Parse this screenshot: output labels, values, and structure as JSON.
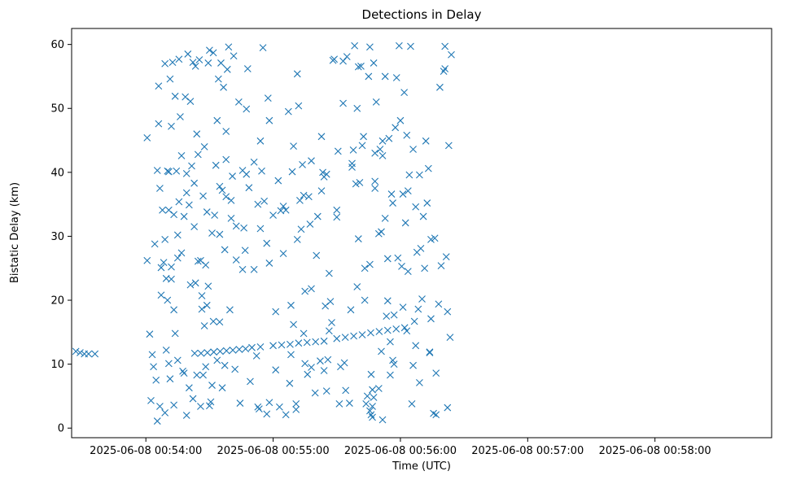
{
  "chart_data": {
    "type": "scatter",
    "title": "Detections in Delay",
    "xlabel": "Time (UTC)",
    "ylabel": "Bistatic Delay (km)",
    "marker": "x",
    "color": "#1f77b4",
    "grid": false,
    "xlim": [
      "2025-06-08 00:53:25",
      "2025-06-08 00:58:55"
    ],
    "ylim": [
      -1.5,
      62.5
    ],
    "x_ticks": [
      "2025-06-08 00:54:00",
      "2025-06-08 00:55:00",
      "2025-06-08 00:56:00",
      "2025-06-08 00:57:00",
      "2025-06-08 00:58:00"
    ],
    "y_ticks": [
      "0",
      "10",
      "20",
      "30",
      "40",
      "50",
      "60"
    ],
    "track": [
      {
        "x": "2025-06-08 00:54:23",
        "y": 11.7
      },
      {
        "x": "2025-06-08 00:54:26",
        "y": 11.7
      },
      {
        "x": "2025-06-08 00:54:29",
        "y": 11.8
      },
      {
        "x": "2025-06-08 00:54:32",
        "y": 11.9
      },
      {
        "x": "2025-06-08 00:54:35",
        "y": 12.0
      },
      {
        "x": "2025-06-08 00:54:38",
        "y": 12.1
      },
      {
        "x": "2025-06-08 00:54:41",
        "y": 12.2
      },
      {
        "x": "2025-06-08 00:54:44",
        "y": 12.3
      },
      {
        "x": "2025-06-08 00:54:47",
        "y": 12.4
      },
      {
        "x": "2025-06-08 00:54:50",
        "y": 12.6
      },
      {
        "x": "2025-06-08 00:54:54",
        "y": 12.7
      },
      {
        "x": "2025-06-08 00:55:00",
        "y": 12.9
      },
      {
        "x": "2025-06-08 00:55:04",
        "y": 13.0
      },
      {
        "x": "2025-06-08 00:55:08",
        "y": 13.1
      },
      {
        "x": "2025-06-08 00:55:12",
        "y": 13.3
      },
      {
        "x": "2025-06-08 00:55:16",
        "y": 13.4
      },
      {
        "x": "2025-06-08 00:55:20",
        "y": 13.5
      },
      {
        "x": "2025-06-08 00:55:24",
        "y": 13.6
      },
      {
        "x": "2025-06-08 00:55:30",
        "y": 14.0
      },
      {
        "x": "2025-06-08 00:55:34",
        "y": 14.2
      },
      {
        "x": "2025-06-08 00:55:38",
        "y": 14.4
      },
      {
        "x": "2025-06-08 00:55:42",
        "y": 14.6
      },
      {
        "x": "2025-06-08 00:55:46",
        "y": 14.9
      },
      {
        "x": "2025-06-08 00:55:50",
        "y": 15.1
      },
      {
        "x": "2025-06-08 00:55:54",
        "y": 15.3
      },
      {
        "x": "2025-06-08 00:55:58",
        "y": 15.5
      },
      {
        "x": "2025-06-08 00:56:02",
        "y": 15.7
      },
      {
        "x": "2025-06-08 00:53:27",
        "y": 12.0
      },
      {
        "x": "2025-06-08 00:53:29",
        "y": 11.8
      },
      {
        "x": "2025-06-08 00:53:31",
        "y": 11.6
      },
      {
        "x": "2025-06-08 00:53:33",
        "y": 11.6
      },
      {
        "x": "2025-06-08 00:53:36",
        "y": 11.6
      }
    ],
    "clutter": [
      [
        0.01,
        45.4
      ],
      [
        0.01,
        26.2
      ],
      [
        0.03,
        14.7
      ],
      [
        0.04,
        4.3
      ],
      [
        0.07,
        28.8
      ],
      [
        0.09,
        40.3
      ],
      [
        0.1,
        53.5
      ],
      [
        0.1,
        47.6
      ],
      [
        0.11,
        37.5
      ],
      [
        0.12,
        20.8
      ],
      [
        0.13,
        34.1
      ],
      [
        0.14,
        25.9
      ],
      [
        0.15,
        57.0
      ],
      [
        0.15,
        29.5
      ],
      [
        0.16,
        23.4
      ],
      [
        0.17,
        20.0
      ],
      [
        0.18,
        34.1
      ],
      [
        0.18,
        40.1
      ],
      [
        0.19,
        54.6
      ],
      [
        0.2,
        47.2
      ],
      [
        0.2,
        25.2
      ],
      [
        0.21,
        57.2
      ],
      [
        0.22,
        33.4
      ],
      [
        0.22,
        18.5
      ],
      [
        0.23,
        51.9
      ],
      [
        0.24,
        40.2
      ],
      [
        0.25,
        30.2
      ],
      [
        0.25,
        26.6
      ],
      [
        0.26,
        57.7
      ],
      [
        0.27,
        48.7
      ],
      [
        0.28,
        42.6
      ],
      [
        0.29,
        8.9
      ],
      [
        0.3,
        33.1
      ],
      [
        0.31,
        51.8
      ],
      [
        0.32,
        39.8
      ],
      [
        0.33,
        58.5
      ],
      [
        0.34,
        34.9
      ],
      [
        0.35,
        51.1
      ],
      [
        0.36,
        41.0
      ],
      [
        0.37,
        57.2
      ],
      [
        0.38,
        38.3
      ],
      [
        0.39,
        56.6
      ],
      [
        0.39,
        22.7
      ],
      [
        0.4,
        46.0
      ],
      [
        0.41,
        42.8
      ],
      [
        0.42,
        57.6
      ],
      [
        0.43,
        26.2
      ],
      [
        0.44,
        18.6
      ],
      [
        0.45,
        36.3
      ],
      [
        0.46,
        44.0
      ],
      [
        0.47,
        25.5
      ],
      [
        0.48,
        19.2
      ],
      [
        0.48,
        33.8
      ],
      [
        0.49,
        57.1
      ],
      [
        0.5,
        59.1
      ],
      [
        0.51,
        4.1
      ],
      [
        0.52,
        30.5
      ],
      [
        0.53,
        58.7
      ],
      [
        0.54,
        33.3
      ],
      [
        0.55,
        41.1
      ],
      [
        0.56,
        48.1
      ],
      [
        0.57,
        54.6
      ],
      [
        0.58,
        30.3
      ],
      [
        0.59,
        57.1
      ],
      [
        0.6,
        37.2
      ],
      [
        0.61,
        53.3
      ],
      [
        0.62,
        27.9
      ],
      [
        0.63,
        46.4
      ],
      [
        0.63,
        42.0
      ],
      [
        0.64,
        56.1
      ],
      [
        0.65,
        59.6
      ],
      [
        0.66,
        18.5
      ],
      [
        0.67,
        32.8
      ],
      [
        0.68,
        39.4
      ],
      [
        0.69,
        58.2
      ],
      [
        0.71,
        26.3
      ],
      [
        0.73,
        51.0
      ],
      [
        0.76,
        24.8
      ],
      [
        0.77,
        31.3
      ],
      [
        0.78,
        27.8
      ],
      [
        0.79,
        39.7
      ],
      [
        0.79,
        49.9
      ],
      [
        0.8,
        56.2
      ],
      [
        0.82,
        7.3
      ],
      [
        0.85,
        41.6
      ],
      [
        0.88,
        35.0
      ],
      [
        0.9,
        44.9
      ],
      [
        0.91,
        40.2
      ],
      [
        0.92,
        59.5
      ],
      [
        0.93,
        35.5
      ],
      [
        0.95,
        28.9
      ],
      [
        0.96,
        51.6
      ],
      [
        0.97,
        48.1
      ],
      [
        0.97,
        25.8
      ],
      [
        1.0,
        33.3
      ],
      [
        1.02,
        9.1
      ],
      [
        1.04,
        38.7
      ],
      [
        1.06,
        34.0
      ],
      [
        1.08,
        34.7
      ],
      [
        1.1,
        34.1
      ],
      [
        1.12,
        49.5
      ],
      [
        1.13,
        7.0
      ],
      [
        1.14,
        19.2
      ],
      [
        1.15,
        40.1
      ],
      [
        1.16,
        44.1
      ],
      [
        1.18,
        2.9
      ],
      [
        1.19,
        29.5
      ],
      [
        1.19,
        55.4
      ],
      [
        1.2,
        50.4
      ],
      [
        1.21,
        35.6
      ],
      [
        1.23,
        41.2
      ],
      [
        1.24,
        36.4
      ],
      [
        1.24,
        14.8
      ],
      [
        1.25,
        21.4
      ],
      [
        1.27,
        8.4
      ],
      [
        1.28,
        36.2
      ],
      [
        1.29,
        31.9
      ],
      [
        1.3,
        9.5
      ],
      [
        1.3,
        21.8
      ],
      [
        1.33,
        5.5
      ],
      [
        1.35,
        33.1
      ],
      [
        1.37,
        10.5
      ],
      [
        1.38,
        45.6
      ],
      [
        1.38,
        37.1
      ],
      [
        1.39,
        40.0
      ],
      [
        1.4,
        39.3
      ],
      [
        1.41,
        19.1
      ],
      [
        1.42,
        5.8
      ],
      [
        1.43,
        10.7
      ],
      [
        1.44,
        24.2
      ],
      [
        1.44,
        15.2
      ],
      [
        1.45,
        19.8
      ],
      [
        1.46,
        16.5
      ],
      [
        1.47,
        57.5
      ],
      [
        1.48,
        57.7
      ],
      [
        1.5,
        34.1
      ],
      [
        1.51,
        43.3
      ],
      [
        1.52,
        3.8
      ],
      [
        1.53,
        9.6
      ],
      [
        1.55,
        57.4
      ],
      [
        1.55,
        50.8
      ],
      [
        1.56,
        10.2
      ],
      [
        1.58,
        58.1
      ],
      [
        1.6,
        3.9
      ],
      [
        1.61,
        18.5
      ],
      [
        1.62,
        40.8
      ],
      [
        1.63,
        43.5
      ],
      [
        1.64,
        59.8
      ],
      [
        1.65,
        38.2
      ],
      [
        1.66,
        50.0
      ],
      [
        1.67,
        56.5
      ],
      [
        1.67,
        29.6
      ],
      [
        1.68,
        38.4
      ],
      [
        1.69,
        56.6
      ],
      [
        1.7,
        44.2
      ],
      [
        1.71,
        45.6
      ],
      [
        1.72,
        20.0
      ],
      [
        1.73,
        3.8
      ],
      [
        1.74,
        5.0
      ],
      [
        1.75,
        55.0
      ],
      [
        1.76,
        59.6
      ],
      [
        1.76,
        25.6
      ],
      [
        1.77,
        8.4
      ],
      [
        1.78,
        6.0
      ],
      [
        1.78,
        3.4
      ],
      [
        1.79,
        57.1
      ],
      [
        1.8,
        43.0
      ],
      [
        1.8,
        37.5
      ],
      [
        1.81,
        51.0
      ],
      [
        1.83,
        6.2
      ],
      [
        1.83,
        30.4
      ],
      [
        1.84,
        43.6
      ],
      [
        1.85,
        12.0
      ],
      [
        1.85,
        30.7
      ],
      [
        1.86,
        44.9
      ],
      [
        1.88,
        55.0
      ],
      [
        1.88,
        32.8
      ],
      [
        1.89,
        17.5
      ],
      [
        1.9,
        19.9
      ],
      [
        1.91,
        45.3
      ],
      [
        1.92,
        13.5
      ],
      [
        1.92,
        8.3
      ],
      [
        1.93,
        36.6
      ],
      [
        1.94,
        35.2
      ],
      [
        1.95,
        17.7
      ],
      [
        1.96,
        47.0
      ],
      [
        1.97,
        54.8
      ],
      [
        1.98,
        26.6
      ],
      [
        1.99,
        59.8
      ],
      [
        2.0,
        48.1
      ],
      [
        2.01,
        25.3
      ],
      [
        2.02,
        18.9
      ],
      [
        2.02,
        36.6
      ],
      [
        2.03,
        52.5
      ],
      [
        2.04,
        32.1
      ],
      [
        2.05,
        45.8
      ],
      [
        2.06,
        37.1
      ],
      [
        2.06,
        24.5
      ],
      [
        2.07,
        39.6
      ],
      [
        2.08,
        59.7
      ],
      [
        2.1,
        43.6
      ],
      [
        2.1,
        9.8
      ],
      [
        2.11,
        16.7
      ],
      [
        2.12,
        34.6
      ],
      [
        2.13,
        27.5
      ],
      [
        2.14,
        18.6
      ],
      [
        2.15,
        39.6
      ],
      [
        2.16,
        28.1
      ],
      [
        2.17,
        20.2
      ],
      [
        2.18,
        33.1
      ],
      [
        2.19,
        25.0
      ],
      [
        2.2,
        44.9
      ],
      [
        2.21,
        35.2
      ],
      [
        2.22,
        40.6
      ],
      [
        2.23,
        11.8
      ],
      [
        2.24,
        29.5
      ],
      [
        2.26,
        2.3
      ],
      [
        2.27,
        29.7
      ],
      [
        2.28,
        8.6
      ],
      [
        2.3,
        19.4
      ],
      [
        2.31,
        53.3
      ],
      [
        2.32,
        25.4
      ],
      [
        2.34,
        55.8
      ],
      [
        2.35,
        56.2
      ],
      [
        2.35,
        59.7
      ],
      [
        2.36,
        26.8
      ],
      [
        2.37,
        18.2
      ],
      [
        2.38,
        44.2
      ],
      [
        2.39,
        14.2
      ],
      [
        2.4,
        58.4
      ],
      [
        0.05,
        11.5
      ],
      [
        0.06,
        9.6
      ],
      [
        0.08,
        7.5
      ],
      [
        0.09,
        1.1
      ],
      [
        0.11,
        3.4
      ],
      [
        0.15,
        2.4
      ],
      [
        0.16,
        12.2
      ],
      [
        0.18,
        10.1
      ],
      [
        0.19,
        7.7
      ],
      [
        0.22,
        3.6
      ],
      [
        0.23,
        14.8
      ],
      [
        0.25,
        10.6
      ],
      [
        0.3,
        8.6
      ],
      [
        0.32,
        2.0
      ],
      [
        0.34,
        6.3
      ],
      [
        0.37,
        4.6
      ],
      [
        0.4,
        8.3
      ],
      [
        0.43,
        3.4
      ],
      [
        0.45,
        8.3
      ],
      [
        0.47,
        9.6
      ],
      [
        0.5,
        3.5
      ],
      [
        0.52,
        6.7
      ],
      [
        0.56,
        10.6
      ],
      [
        0.58,
        16.6
      ],
      [
        0.6,
        6.3
      ],
      [
        0.62,
        9.8
      ],
      [
        0.7,
        9.2
      ],
      [
        0.74,
        3.9
      ],
      [
        0.88,
        3.3
      ],
      [
        0.95,
        2.2
      ],
      [
        0.97,
        4.0
      ],
      [
        1.05,
        3.3
      ],
      [
        1.1,
        2.1
      ],
      [
        1.18,
        3.8
      ],
      [
        1.76,
        2.7
      ],
      [
        1.77,
        2.1
      ],
      [
        1.78,
        1.7
      ],
      [
        1.79,
        4.8
      ],
      [
        1.86,
        1.3
      ],
      [
        1.94,
        10.6
      ],
      [
        2.09,
        3.8
      ],
      [
        2.12,
        12.9
      ],
      [
        2.15,
        7.1
      ],
      [
        2.23,
        11.9
      ],
      [
        2.24,
        17.1
      ],
      [
        2.28,
        2.1
      ],
      [
        2.37,
        3.2
      ],
      [
        0.12,
        25.1
      ],
      [
        0.17,
        40.2
      ],
      [
        0.2,
        23.3
      ],
      [
        0.26,
        35.4
      ],
      [
        0.28,
        27.4
      ],
      [
        0.32,
        36.8
      ],
      [
        0.35,
        22.4
      ],
      [
        0.38,
        31.5
      ],
      [
        0.41,
        26.1
      ],
      [
        0.44,
        20.7
      ],
      [
        0.46,
        16.0
      ],
      [
        0.49,
        22.2
      ],
      [
        0.53,
        16.7
      ],
      [
        0.58,
        37.8
      ],
      [
        0.63,
        36.2
      ],
      [
        0.67,
        35.6
      ],
      [
        0.71,
        31.6
      ],
      [
        0.76,
        40.3
      ],
      [
        0.81,
        37.6
      ],
      [
        0.85,
        24.8
      ],
      [
        0.87,
        11.3
      ],
      [
        0.89,
        3.0
      ],
      [
        0.9,
        31.2
      ],
      [
        1.02,
        18.2
      ],
      [
        1.08,
        27.3
      ],
      [
        1.14,
        11.5
      ],
      [
        1.16,
        16.2
      ],
      [
        1.22,
        31.1
      ],
      [
        1.25,
        10.1
      ],
      [
        1.3,
        41.8
      ],
      [
        1.34,
        27.0
      ],
      [
        1.4,
        9.0
      ],
      [
        1.42,
        39.7
      ],
      [
        1.5,
        33.0
      ],
      [
        1.57,
        5.9
      ],
      [
        1.62,
        41.4
      ],
      [
        1.66,
        22.1
      ],
      [
        1.72,
        25.0
      ],
      [
        1.8,
        38.6
      ],
      [
        1.86,
        42.6
      ],
      [
        1.9,
        26.5
      ],
      [
        1.95,
        10.0
      ],
      [
        2.05,
        15.2
      ]
    ]
  }
}
